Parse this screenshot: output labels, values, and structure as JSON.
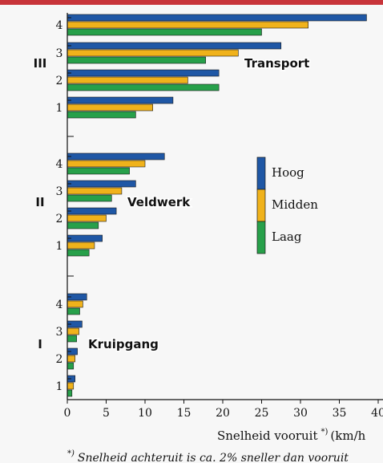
{
  "chart_data": {
    "type": "bar",
    "orientation": "horizontal",
    "xlabel": "Snelheid vooruit",
    "xlabel_sup": "*)",
    "xlabel_unit": "(km/h",
    "xlim": [
      0,
      40
    ],
    "xticks": [
      "0",
      "5",
      "10",
      "15",
      "20",
      "25",
      "30",
      "35",
      "40"
    ],
    "footnote_sup": "*)",
    "footnote": "Snelheid achteruit is ca. 2% sneller dan vooruit",
    "legend_placement": "right",
    "series": [
      {
        "name": "Hoog",
        "color": "#1f57a5"
      },
      {
        "name": "Midden",
        "color": "#f0b21b"
      },
      {
        "name": "Laag",
        "color": "#27a04a"
      }
    ],
    "groups": [
      {
        "label": "III",
        "annotation": "Transport",
        "gears": [
          {
            "label": "4",
            "values": [
              38.5,
              31,
              25
            ]
          },
          {
            "label": "3",
            "values": [
              27.5,
              22,
              17.8
            ]
          },
          {
            "label": "2",
            "values": [
              19.5,
              15.5,
              19.5
            ]
          },
          {
            "label": "1",
            "values": [
              13.6,
              11,
              8.8
            ]
          }
        ]
      },
      {
        "label": "II",
        "annotation": "Veldwerk",
        "gears": [
          {
            "label": "4",
            "values": [
              12.5,
              10,
              8
            ]
          },
          {
            "label": "3",
            "values": [
              8.8,
              7,
              5.7
            ]
          },
          {
            "label": "2",
            "values": [
              6.3,
              5,
              4
            ]
          },
          {
            "label": "1",
            "values": [
              4.5,
              3.5,
              2.8
            ]
          }
        ]
      },
      {
        "label": "I",
        "annotation": "Kruipgang",
        "gears": [
          {
            "label": "4",
            "values": [
              2.5,
              2,
              1.6
            ]
          },
          {
            "label": "3",
            "values": [
              1.9,
              1.5,
              1.2
            ]
          },
          {
            "label": "2",
            "values": [
              1.3,
              1,
              0.8
            ]
          },
          {
            "label": "1",
            "values": [
              1,
              0.8,
              0.6
            ]
          }
        ]
      }
    ]
  }
}
